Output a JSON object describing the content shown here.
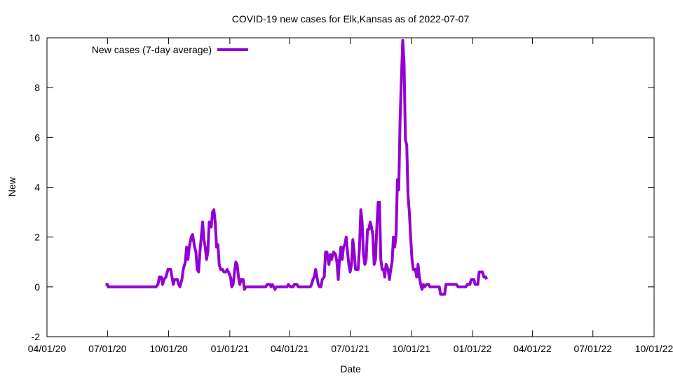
{
  "chart_data": {
    "type": "line",
    "title": "COVID-19 new cases for Elk,Kansas as of 2022-07-07",
    "xlabel": "Date",
    "ylabel": "New",
    "grid": false,
    "legend_position": "top-left",
    "ylim": [
      -2,
      10
    ],
    "yticks": [
      "-2",
      "0",
      "2",
      "4",
      "6",
      "8",
      "10"
    ],
    "xlim": [
      "2020-04-01",
      "2022-10-01"
    ],
    "xticks": [
      "2020-04-01",
      "2020-07-01",
      "2020-10-01",
      "2021-01-01",
      "2021-04-01",
      "2021-07-01",
      "2021-10-01",
      "2022-01-01",
      "2022-04-01",
      "2022-07-01",
      "2022-10-01"
    ],
    "xtick_labels": [
      "04/01/20",
      "07/01/20",
      "10/01/20",
      "01/01/21",
      "04/01/21",
      "07/01/21",
      "10/01/21",
      "01/01/22",
      "04/01/22",
      "07/01/22",
      "10/01/22"
    ],
    "series": [
      {
        "name": "New cases (7-day average)",
        "color": "#9400d3",
        "points": [
          [
            "2020-06-28",
            0.1
          ],
          [
            "2020-07-01",
            0.1
          ],
          [
            "2020-07-02",
            0
          ],
          [
            "2020-09-12",
            0
          ],
          [
            "2020-09-15",
            0.1
          ],
          [
            "2020-09-17",
            0.4
          ],
          [
            "2020-09-20",
            0.4
          ],
          [
            "2020-09-22",
            0.1
          ],
          [
            "2020-09-24",
            0.3
          ],
          [
            "2020-09-27",
            0.4
          ],
          [
            "2020-09-30",
            0.7
          ],
          [
            "2020-10-04",
            0.7
          ],
          [
            "2020-10-06",
            0.4
          ],
          [
            "2020-10-08",
            0.1
          ],
          [
            "2020-10-10",
            0.3
          ],
          [
            "2020-10-14",
            0.3
          ],
          [
            "2020-10-16",
            0.1
          ],
          [
            "2020-10-18",
            0
          ],
          [
            "2020-10-21",
            0.3
          ],
          [
            "2020-10-23",
            0.7
          ],
          [
            "2020-10-26",
            1.0
          ],
          [
            "2020-10-28",
            1.6
          ],
          [
            "2020-10-30",
            1.1
          ],
          [
            "2020-11-01",
            1.6
          ],
          [
            "2020-11-04",
            2.0
          ],
          [
            "2020-11-06",
            2.1
          ],
          [
            "2020-11-09",
            1.6
          ],
          [
            "2020-11-11",
            1.4
          ],
          [
            "2020-11-13",
            0.7
          ],
          [
            "2020-11-15",
            0.6
          ],
          [
            "2020-11-17",
            1.4
          ],
          [
            "2020-11-19",
            2.0
          ],
          [
            "2020-11-21",
            2.6
          ],
          [
            "2020-11-23",
            1.9
          ],
          [
            "2020-11-25",
            1.6
          ],
          [
            "2020-11-27",
            1.1
          ],
          [
            "2020-11-29",
            1.4
          ],
          [
            "2020-12-01",
            2.6
          ],
          [
            "2020-12-04",
            2.4
          ],
          [
            "2020-12-06",
            3.0
          ],
          [
            "2020-12-08",
            3.1
          ],
          [
            "2020-12-10",
            2.6
          ],
          [
            "2020-12-12",
            1.6
          ],
          [
            "2020-12-14",
            1.7
          ],
          [
            "2020-12-16",
            0.9
          ],
          [
            "2020-12-18",
            0.7
          ],
          [
            "2020-12-21",
            0.7
          ],
          [
            "2020-12-23",
            0.6
          ],
          [
            "2020-12-26",
            0.6
          ],
          [
            "2020-12-28",
            0.7
          ],
          [
            "2020-12-30",
            0.6
          ],
          [
            "2021-01-02",
            0.4
          ],
          [
            "2021-01-04",
            0
          ],
          [
            "2021-01-06",
            0.1
          ],
          [
            "2021-01-08",
            0.6
          ],
          [
            "2021-01-10",
            1.0
          ],
          [
            "2021-01-12",
            0.9
          ],
          [
            "2021-01-14",
            0.4
          ],
          [
            "2021-01-16",
            0.1
          ],
          [
            "2021-01-18",
            0.3
          ],
          [
            "2021-01-21",
            0.3
          ],
          [
            "2021-01-23",
            -0.1
          ],
          [
            "2021-01-25",
            0
          ],
          [
            "2021-02-24",
            0
          ],
          [
            "2021-02-26",
            0.1
          ],
          [
            "2021-03-02",
            0.1
          ],
          [
            "2021-03-04",
            0
          ],
          [
            "2021-03-06",
            0.1
          ],
          [
            "2021-03-08",
            0
          ],
          [
            "2021-03-10",
            -0.1
          ],
          [
            "2021-03-12",
            0
          ],
          [
            "2021-03-28",
            0
          ],
          [
            "2021-03-30",
            0.1
          ],
          [
            "2021-04-02",
            0
          ],
          [
            "2021-04-06",
            0
          ],
          [
            "2021-04-08",
            0.1
          ],
          [
            "2021-04-12",
            0.1
          ],
          [
            "2021-04-14",
            0
          ],
          [
            "2021-05-02",
            0
          ],
          [
            "2021-05-04",
            0.1
          ],
          [
            "2021-05-06",
            0.3
          ],
          [
            "2021-05-08",
            0.4
          ],
          [
            "2021-05-10",
            0.7
          ],
          [
            "2021-05-12",
            0.4
          ],
          [
            "2021-05-14",
            0.1
          ],
          [
            "2021-05-16",
            0
          ],
          [
            "2021-05-18",
            0
          ],
          [
            "2021-05-20",
            0.3
          ],
          [
            "2021-05-23",
            0.4
          ],
          [
            "2021-05-25",
            1.4
          ],
          [
            "2021-05-27",
            1.4
          ],
          [
            "2021-05-30",
            0.9
          ],
          [
            "2021-06-01",
            1.3
          ],
          [
            "2021-06-03",
            1.1
          ],
          [
            "2021-06-06",
            1.4
          ],
          [
            "2021-06-09",
            1.3
          ],
          [
            "2021-06-11",
            1.0
          ],
          [
            "2021-06-13",
            0.3
          ],
          [
            "2021-06-15",
            1.1
          ],
          [
            "2021-06-17",
            1.6
          ],
          [
            "2021-06-19",
            1.1
          ],
          [
            "2021-06-21",
            1.6
          ],
          [
            "2021-06-23",
            1.7
          ],
          [
            "2021-06-25",
            2.0
          ],
          [
            "2021-06-27",
            1.4
          ],
          [
            "2021-06-29",
            0.9
          ],
          [
            "2021-07-01",
            0.6
          ],
          [
            "2021-07-03",
            0.9
          ],
          [
            "2021-07-05",
            1.9
          ],
          [
            "2021-07-07",
            1.4
          ],
          [
            "2021-07-09",
            0.7
          ],
          [
            "2021-07-13",
            0.7
          ],
          [
            "2021-07-15",
            1.6
          ],
          [
            "2021-07-17",
            3.1
          ],
          [
            "2021-07-19",
            2.6
          ],
          [
            "2021-07-21",
            1.3
          ],
          [
            "2021-07-23",
            0.9
          ],
          [
            "2021-07-25",
            1.1
          ],
          [
            "2021-07-27",
            2.3
          ],
          [
            "2021-07-29",
            2.3
          ],
          [
            "2021-07-31",
            2.6
          ],
          [
            "2021-08-02",
            2.4
          ],
          [
            "2021-08-04",
            2.1
          ],
          [
            "2021-08-06",
            0.9
          ],
          [
            "2021-08-08",
            1.1
          ],
          [
            "2021-08-10",
            2.4
          ],
          [
            "2021-08-12",
            3.4
          ],
          [
            "2021-08-14",
            3.4
          ],
          [
            "2021-08-16",
            1.1
          ],
          [
            "2021-08-18",
            0.7
          ],
          [
            "2021-08-20",
            0.7
          ],
          [
            "2021-08-22",
            0.4
          ],
          [
            "2021-08-24",
            0.9
          ],
          [
            "2021-08-27",
            0.7
          ],
          [
            "2021-08-29",
            0.3
          ],
          [
            "2021-08-31",
            0.7
          ],
          [
            "2021-09-02",
            1.0
          ],
          [
            "2021-09-04",
            2.0
          ],
          [
            "2021-09-06",
            1.6
          ],
          [
            "2021-09-08",
            2.1
          ],
          [
            "2021-09-10",
            4.3
          ],
          [
            "2021-09-12",
            3.9
          ],
          [
            "2021-09-14",
            6.7
          ],
          [
            "2021-09-16",
            8.4
          ],
          [
            "2021-09-18",
            9.9
          ],
          [
            "2021-09-20",
            9.0
          ],
          [
            "2021-09-22",
            5.9
          ],
          [
            "2021-09-24",
            5.7
          ],
          [
            "2021-09-26",
            3.7
          ],
          [
            "2021-09-28",
            3.0
          ],
          [
            "2021-09-30",
            2.0
          ],
          [
            "2021-10-02",
            1.1
          ],
          [
            "2021-10-04",
            0.7
          ],
          [
            "2021-10-07",
            0.7
          ],
          [
            "2021-10-09",
            0.4
          ],
          [
            "2021-10-11",
            0.9
          ],
          [
            "2021-10-13",
            0.4
          ],
          [
            "2021-10-15",
            0.1
          ],
          [
            "2021-10-17",
            -0.1
          ],
          [
            "2021-10-19",
            0.1
          ],
          [
            "2021-10-21",
            0
          ],
          [
            "2021-10-24",
            0.1
          ],
          [
            "2021-10-27",
            0.1
          ],
          [
            "2021-10-29",
            0
          ],
          [
            "2021-11-12",
            0
          ],
          [
            "2021-11-14",
            -0.3
          ],
          [
            "2021-11-20",
            -0.3
          ],
          [
            "2021-11-22",
            0.1
          ],
          [
            "2021-12-08",
            0.1
          ],
          [
            "2021-12-10",
            0
          ],
          [
            "2021-12-22",
            0
          ],
          [
            "2021-12-24",
            0.1
          ],
          [
            "2021-12-28",
            0.1
          ],
          [
            "2021-12-30",
            0.3
          ],
          [
            "2022-01-03",
            0.3
          ],
          [
            "2022-01-05",
            0.1
          ],
          [
            "2022-01-09",
            0.1
          ],
          [
            "2022-01-11",
            0.6
          ],
          [
            "2022-01-16",
            0.6
          ],
          [
            "2022-01-18",
            0.4
          ],
          [
            "2022-01-21",
            0.4
          ],
          [
            "2022-01-22",
            0.3
          ]
        ]
      }
    ]
  }
}
